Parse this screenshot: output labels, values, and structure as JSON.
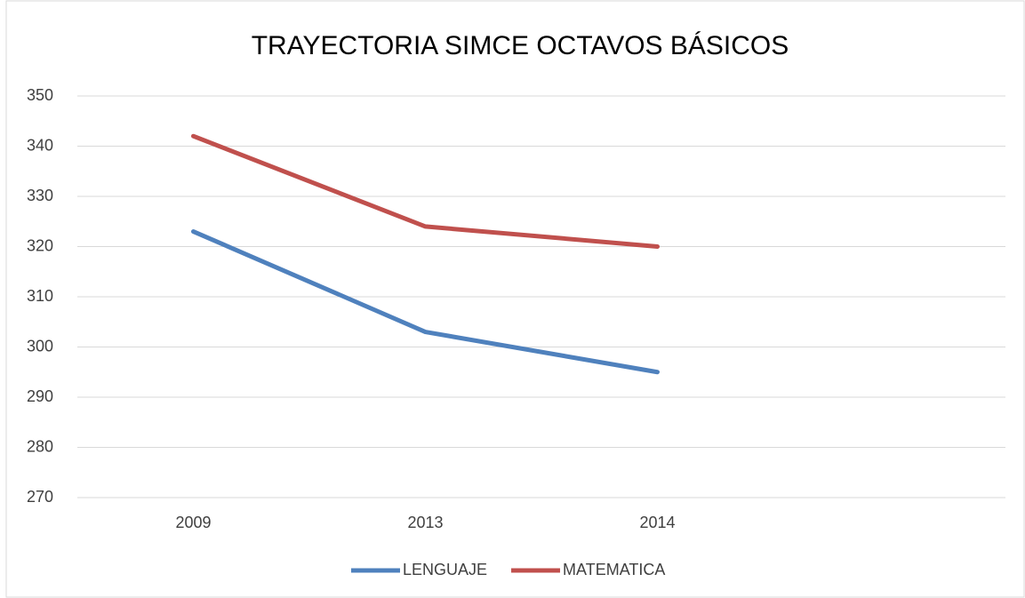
{
  "chart_data": {
    "type": "line",
    "title": "TRAYECTORIA SIMCE OCTAVOS BÁSICOS",
    "categories": [
      "2009",
      "2013",
      "2014",
      null
    ],
    "series": [
      {
        "name": "LENGUAJE",
        "color": "#4f81bd",
        "values": [
          323,
          303,
          295,
          null
        ]
      },
      {
        "name": "MATEMATICA",
        "color": "#c0504d",
        "values": [
          342,
          324,
          320,
          null
        ]
      }
    ],
    "ylim": [
      270,
      350
    ],
    "yticks": [
      270,
      280,
      290,
      300,
      310,
      320,
      330,
      340,
      350
    ],
    "grid": true,
    "legend": "bottom"
  }
}
